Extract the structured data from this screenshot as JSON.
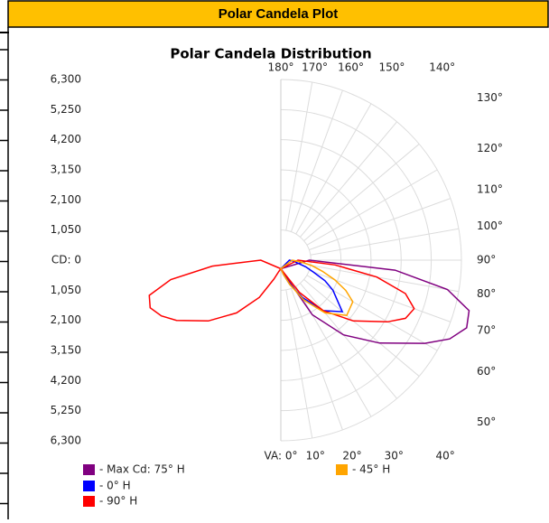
{
  "header": {
    "title": "Polar Candela Plot"
  },
  "chart_data": {
    "type": "polar",
    "title": "Polar Candela Distribution",
    "x": [
      0,
      10,
      20,
      30,
      40,
      50,
      60,
      65,
      70,
      75,
      80,
      85,
      90
    ],
    "rlim": [
      0,
      6300
    ],
    "rticks": [
      {
        "value": 0,
        "label": "CD: 0"
      },
      {
        "value": 1050,
        "label": "1,050"
      },
      {
        "value": 2100,
        "label": "2,100"
      },
      {
        "value": 3150,
        "label": "3,150"
      },
      {
        "value": 4200,
        "label": "4,200"
      },
      {
        "value": 5250,
        "label": "5,250"
      },
      {
        "value": 6300,
        "label": "6,300"
      }
    ],
    "angle_ticks": [
      {
        "value": 0,
        "label": "VA: 0°"
      },
      {
        "value": 10,
        "label": "10°"
      },
      {
        "value": 20,
        "label": "20°"
      },
      {
        "value": 30,
        "label": "30°"
      },
      {
        "value": 40,
        "label": "40°"
      },
      {
        "value": 50,
        "label": "50°"
      },
      {
        "value": 60,
        "label": "60°"
      },
      {
        "value": 70,
        "label": "70°"
      },
      {
        "value": 80,
        "label": "80°"
      },
      {
        "value": 90,
        "label": "90°"
      },
      {
        "value": 100,
        "label": "100°"
      },
      {
        "value": 110,
        "label": "110°"
      },
      {
        "value": 120,
        "label": "120°"
      },
      {
        "value": 130,
        "label": "130°"
      },
      {
        "value": 140,
        "label": "140°"
      },
      {
        "value": 150,
        "label": "150°"
      },
      {
        "value": 160,
        "label": "160°"
      },
      {
        "value": 170,
        "label": "170°"
      },
      {
        "value": 180,
        "label": "180°"
      }
    ],
    "grid": true,
    "series": [
      {
        "name": "- Max Cd: 75° H",
        "color": "#800080",
        "values": [
          300,
          400,
          700,
          2200,
          3400,
          4500,
          5800,
          6500,
          6900,
          6800,
          5900,
          4000,
          1000
        ]
      },
      {
        "name": "- 0° H",
        "color": "#0000ff",
        "values": [
          300,
          500,
          900,
          1500,
          2300,
          2800,
          2100,
          1700,
          1200,
          900,
          600,
          450,
          300
        ]
      },
      {
        "name": "- 90° H",
        "color": "#ff0000",
        "values": [
          300,
          400,
          600,
          1300,
          2300,
          3300,
          4300,
          4800,
          4950,
          4500,
          3400,
          1900,
          600
        ],
        "values_left": [
          300,
          400,
          700,
          1500,
          2400,
          3300,
          4200,
          4600,
          4850,
          4750,
          3900,
          2400,
          700
        ]
      },
      {
        "name": "- 45° H",
        "color": "#ffa500",
        "values": [
          300,
          500,
          900,
          1600,
          2400,
          3000,
          2900,
          2500,
          2000,
          1500,
          1100,
          700,
          400
        ]
      }
    ]
  }
}
